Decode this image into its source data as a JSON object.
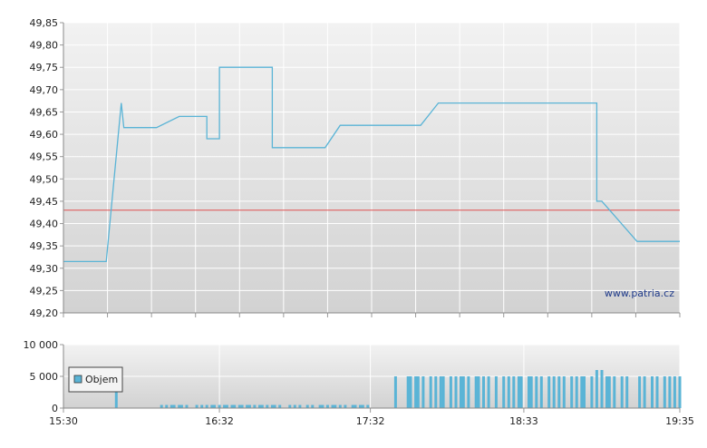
{
  "chart_data": [
    {
      "type": "line",
      "title": "",
      "xlabel": "",
      "ylabel": "",
      "xlim": [
        "15:30",
        "19:35"
      ],
      "ylim": [
        49.2,
        49.85
      ],
      "y_ticks": [
        "49,20",
        "49,25",
        "49,30",
        "49,35",
        "49,40",
        "49,45",
        "49,50",
        "49,55",
        "49,60",
        "49,65",
        "49,70",
        "49,75",
        "49,80",
        "49,85"
      ],
      "grid": true,
      "watermark": "www.patria.cz",
      "reference_line": {
        "value": 49.43,
        "color": "#e05050"
      },
      "series": [
        {
          "color": "#5ab4d6",
          "points": [
            [
              "15:30",
              49.315
            ],
            [
              "15:47",
              49.315
            ],
            [
              "15:53",
              49.67
            ],
            [
              "15:54",
              49.615
            ],
            [
              "16:07",
              49.615
            ],
            [
              "16:16",
              49.64
            ],
            [
              "16:27",
              49.64
            ],
            [
              "16:27",
              49.59
            ],
            [
              "16:32",
              49.59
            ],
            [
              "16:32",
              49.75
            ],
            [
              "16:53",
              49.75
            ],
            [
              "16:53",
              49.57
            ],
            [
              "17:14",
              49.57
            ],
            [
              "17:20",
              49.62
            ],
            [
              "17:52",
              49.62
            ],
            [
              "17:59",
              49.67
            ],
            [
              "19:02",
              49.67
            ],
            [
              "19:02",
              49.45
            ],
            [
              "19:04",
              49.45
            ],
            [
              "19:18",
              49.36
            ],
            [
              "19:35",
              49.36
            ]
          ]
        }
      ]
    },
    {
      "type": "bar",
      "title": "",
      "ylim": [
        0,
        10000
      ],
      "y_ticks": [
        "0",
        "5 000",
        "10 000"
      ],
      "x_ticks": [
        "15:30",
        "16:32",
        "17:32",
        "18:33",
        "19:35"
      ],
      "legend": {
        "label": "Objem",
        "position": "bottom-left",
        "color": "#5ab4d6"
      },
      "series": [
        {
          "name": "Objem",
          "color": "#5ab4d6",
          "x": [
            "15:51",
            "16:09",
            "16:11",
            "16:13",
            "16:14",
            "16:16",
            "16:17",
            "16:19",
            "16:23",
            "16:25",
            "16:27",
            "16:29",
            "16:30",
            "16:32",
            "16:34",
            "16:35",
            "16:37",
            "16:38",
            "16:40",
            "16:41",
            "16:43",
            "16:44",
            "16:46",
            "16:48",
            "16:49",
            "16:51",
            "16:53",
            "16:54",
            "16:56",
            "17:00",
            "17:02",
            "17:04",
            "17:07",
            "17:09",
            "17:12",
            "17:13",
            "17:15",
            "17:17",
            "17:18",
            "17:20",
            "17:22",
            "17:25",
            "17:26",
            "17:28",
            "17:29",
            "17:31",
            "17:42",
            "17:47",
            "17:48",
            "17:50",
            "17:51",
            "17:53",
            "17:56",
            "17:58",
            "18:00",
            "18:01",
            "18:04",
            "18:06",
            "18:08",
            "18:09",
            "18:11",
            "18:14",
            "18:15",
            "18:17",
            "18:19",
            "18:22",
            "18:25",
            "18:27",
            "18:29",
            "18:31",
            "18:32",
            "18:35",
            "18:36",
            "18:38",
            "18:40",
            "18:43",
            "18:45",
            "18:47",
            "18:49",
            "18:52",
            "18:54",
            "18:56",
            "18:57",
            "19:00",
            "19:02",
            "19:04",
            "19:06",
            "19:07",
            "19:09",
            "19:12",
            "19:14",
            "19:19",
            "19:21",
            "19:24",
            "19:26",
            "19:29",
            "19:31",
            "19:33",
            "19:35"
          ],
          "values": [
            5000,
            500,
            500,
            500,
            500,
            500,
            500,
            500,
            500,
            500,
            500,
            500,
            500,
            500,
            500,
            500,
            500,
            500,
            500,
            500,
            500,
            500,
            500,
            500,
            500,
            500,
            500,
            500,
            500,
            500,
            500,
            500,
            500,
            500,
            500,
            500,
            500,
            500,
            500,
            500,
            500,
            500,
            500,
            500,
            500,
            500,
            5000,
            5000,
            5000,
            5000,
            5000,
            5000,
            5000,
            5000,
            5000,
            5000,
            5000,
            5000,
            5000,
            5000,
            5000,
            5000,
            5000,
            5000,
            5000,
            5000,
            5000,
            5000,
            5000,
            5000,
            5000,
            5000,
            5000,
            5000,
            5000,
            5000,
            5000,
            5000,
            5000,
            5000,
            5000,
            5000,
            5000,
            5000,
            6000,
            6000,
            5000,
            5000,
            5000,
            5000,
            5000,
            5000,
            5000,
            5000,
            5000,
            5000,
            5000,
            5000,
            5000
          ]
        }
      ]
    }
  ]
}
